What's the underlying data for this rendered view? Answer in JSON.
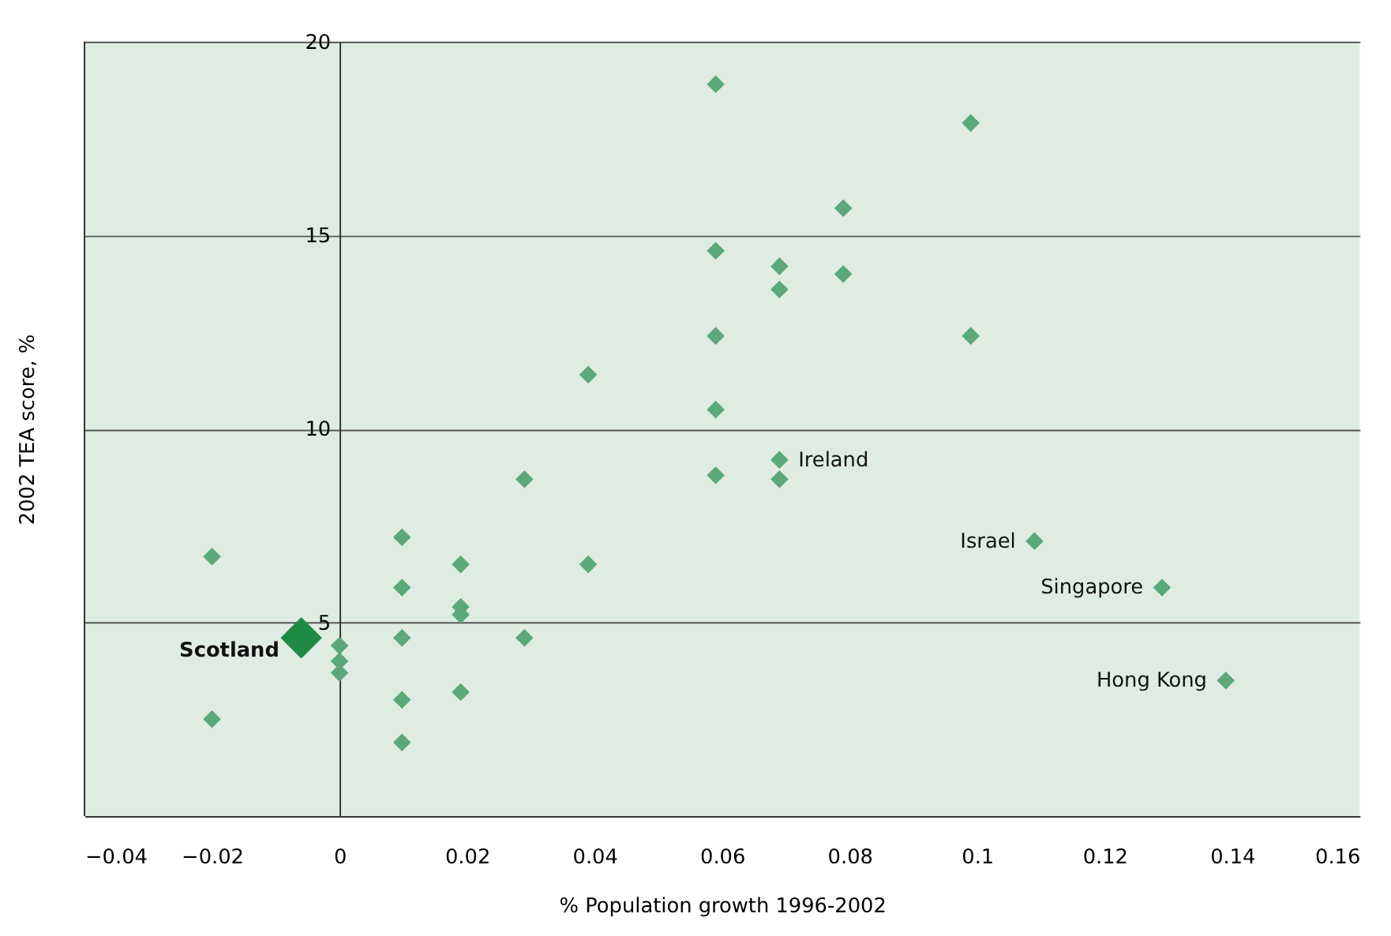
{
  "chart_data": {
    "type": "scatter",
    "xlabel": "% Population growth 1996-2002",
    "ylabel": "2002 TEA score, %",
    "xlim": [
      -0.04,
      0.16
    ],
    "xticks": [
      -0.04,
      -0.02,
      0,
      0.02,
      0.04,
      0.06,
      0.08,
      0.1,
      0.12,
      0.14,
      0.16
    ],
    "ylim": [
      0,
      20
    ],
    "yticks": [
      5,
      10,
      15,
      20
    ],
    "grid": "y",
    "marker": "diamond",
    "series": [
      {
        "color": "#5ba878",
        "x": [
          0.059,
          0.099,
          0.079,
          0.059,
          0.069,
          0.079,
          0.069,
          0.059,
          0.099,
          0.039,
          0.059,
          0.069,
          0.059,
          0.069,
          0.029,
          0.109,
          0.0098,
          -0.02,
          0.019,
          0.039,
          0.0098,
          0.129,
          0.019,
          0.019,
          0,
          0.0098,
          0.029,
          0,
          0,
          0.0098,
          0.019,
          -0.02,
          0.0098,
          0.139
        ],
        "values": [
          18.9,
          17.9,
          15.7,
          14.6,
          14.2,
          14.0,
          13.6,
          12.4,
          12.4,
          11.4,
          10.5,
          9.2,
          8.8,
          8.7,
          8.7,
          7.1,
          7.2,
          6.7,
          6.5,
          6.5,
          5.9,
          5.9,
          5.4,
          5.2,
          4.4,
          4.6,
          4.6,
          4.0,
          3.7,
          3.0,
          3.2,
          2.5,
          1.9,
          3.5
        ]
      },
      {
        "name": "Scotland",
        "color": "#1f8a45",
        "x": [
          -0.006
        ],
        "values": [
          4.6
        ]
      }
    ],
    "annotations": [
      {
        "text": "Ireland",
        "x": 0.069,
        "y": 9.2
      },
      {
        "text": "Israel",
        "x": 0.109,
        "y": 7.1
      },
      {
        "text": "Singapore",
        "x": 0.129,
        "y": 5.9
      },
      {
        "text": "Hong Kong",
        "x": 0.139,
        "y": 3.5
      }
    ]
  }
}
